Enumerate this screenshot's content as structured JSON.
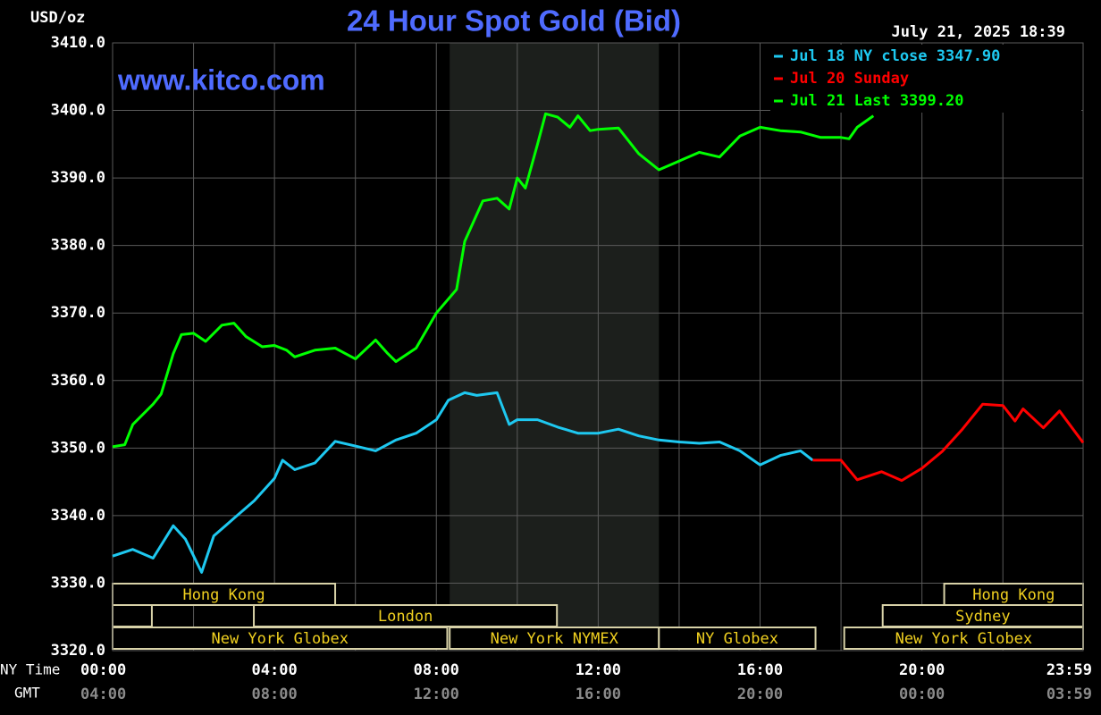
{
  "chart_data": {
    "type": "line",
    "title": "24 Hour Spot Gold (Bid)",
    "y_unit": "USD/oz",
    "watermark": "www.kitco.com",
    "timestamp": "July 21, 2025 18:39",
    "x_axis_label": "NY Time",
    "x2_axis_label": "GMT",
    "xlim": [
      0,
      23.983
    ],
    "ylim": [
      3320,
      3410
    ],
    "yticks": [
      {
        "value": 3410,
        "label": "3410.0"
      },
      {
        "value": 3400,
        "label": "3400.0"
      },
      {
        "value": 3390,
        "label": "3390.0"
      },
      {
        "value": 3380,
        "label": "3380.0"
      },
      {
        "value": 3370,
        "label": "3370.0"
      },
      {
        "value": 3360,
        "label": "3360.0"
      },
      {
        "value": 3350,
        "label": "3350.0"
      },
      {
        "value": 3340,
        "label": "3340.0"
      },
      {
        "value": 3330,
        "label": "3330.0"
      },
      {
        "value": 3320,
        "label": "3320.0"
      }
    ],
    "xticks": [
      {
        "value": 0,
        "label": "00:00"
      },
      {
        "value": 4,
        "label": "04:00"
      },
      {
        "value": 8,
        "label": "08:00"
      },
      {
        "value": 12,
        "label": "12:00"
      },
      {
        "value": 16,
        "label": "16:00"
      },
      {
        "value": 20,
        "label": "20:00"
      },
      {
        "value": 23.983,
        "label": "23:59"
      }
    ],
    "x2ticks": [
      {
        "value": 0,
        "label": "04:00"
      },
      {
        "value": 4,
        "label": "08:00"
      },
      {
        "value": 8,
        "label": "12:00"
      },
      {
        "value": 12,
        "label": "16:00"
      },
      {
        "value": 16,
        "label": "20:00"
      },
      {
        "value": 20,
        "label": "00:00"
      },
      {
        "value": 23.983,
        "label": "03:59"
      }
    ],
    "xgrid": [
      2,
      6,
      10,
      14,
      18,
      22
    ],
    "grid": true,
    "highlight": {
      "start": 8.33,
      "end": 13.5
    },
    "sessions": [
      {
        "row": 0,
        "start": 0,
        "end": 5.5,
        "label": "Hong Kong"
      },
      {
        "row": 0,
        "start": 20.55,
        "end": 23.983,
        "label": "Hong Kong"
      },
      {
        "row": 1,
        "start": 0,
        "end": 0.97
      },
      {
        "row": 1,
        "start": 3.49,
        "end": 10.98,
        "label": "London"
      },
      {
        "row": 1,
        "start": 19.03,
        "end": 23.983,
        "label": "Sydney"
      },
      {
        "row": 2,
        "start": 0,
        "end": 8.27,
        "label": "New York Globex"
      },
      {
        "row": 2,
        "start": 8.33,
        "end": 13.5,
        "label": "New York NYMEX"
      },
      {
        "row": 2,
        "start": 13.5,
        "end": 17.37,
        "label": "NY Globex"
      },
      {
        "row": 2,
        "start": 18.08,
        "end": 23.983,
        "label": "New York Globex"
      }
    ],
    "series": [
      {
        "name": "Jul 18 NY close 3347.90",
        "color": "#1ec8f0",
        "x": [
          0,
          0.5,
          1.0,
          1.5,
          1.8,
          2.2,
          2.5,
          3.0,
          3.5,
          4.0,
          4.2,
          4.5,
          5.0,
          5.5,
          6.0,
          6.5,
          7.0,
          7.5,
          8.0,
          8.3,
          8.7,
          9.0,
          9.5,
          9.8,
          10.0,
          10.5,
          11.0,
          11.5,
          12.0,
          12.5,
          13.0,
          13.5,
          14.0,
          14.5,
          15.0,
          15.5,
          16.0,
          16.5,
          17.0,
          17.3
        ],
        "values": [
          3334.0,
          3335.0,
          3333.7,
          3338.5,
          3336.5,
          3331.6,
          3337.0,
          3339.6,
          3342.2,
          3345.5,
          3348.2,
          3346.8,
          3347.8,
          3351.0,
          3350.3,
          3349.6,
          3351.2,
          3352.2,
          3354.2,
          3357.1,
          3358.2,
          3357.8,
          3358.2,
          3353.5,
          3354.2,
          3354.2,
          3353.1,
          3352.2,
          3352.2,
          3352.8,
          3351.8,
          3351.2,
          3350.9,
          3350.7,
          3350.9,
          3349.6,
          3347.5,
          3348.9,
          3349.6,
          3348.2
        ]
      },
      {
        "name": "Jul 20 Sunday",
        "color": "#ff0000",
        "x": [
          17.3,
          18.0,
          18.4,
          19.0,
          19.5,
          20.0,
          20.5,
          21.0,
          21.5,
          22.0,
          22.3,
          22.5,
          23.0,
          23.4,
          23.983
        ],
        "values": [
          3348.2,
          3348.2,
          3345.3,
          3346.5,
          3345.2,
          3347.0,
          3349.5,
          3352.8,
          3356.5,
          3356.3,
          3354.0,
          3355.8,
          3353.0,
          3355.5,
          3350.8
        ]
      },
      {
        "name": "Jul 21 Last 3399.20",
        "color": "#00ff00",
        "x": [
          0,
          0.3,
          0.5,
          1.0,
          1.2,
          1.5,
          1.7,
          2.0,
          2.3,
          2.7,
          3.0,
          3.3,
          3.7,
          4.0,
          4.3,
          4.5,
          5.0,
          5.5,
          6.0,
          6.5,
          6.8,
          7.0,
          7.5,
          8.0,
          8.5,
          8.7,
          9.15,
          9.5,
          9.8,
          10.0,
          10.2,
          10.5,
          10.7,
          11.0,
          11.3,
          11.5,
          11.8,
          12.0,
          12.5,
          13.0,
          13.5,
          14.0,
          14.5,
          15.0,
          15.5,
          16.0,
          16.5,
          17.0,
          17.5,
          18.0,
          18.2,
          18.4,
          18.8
        ],
        "values": [
          3350.2,
          3350.5,
          3353.5,
          3356.5,
          3358.0,
          3364.0,
          3366.8,
          3367.0,
          3365.8,
          3368.2,
          3368.5,
          3366.5,
          3365.0,
          3365.2,
          3364.5,
          3363.5,
          3364.5,
          3364.8,
          3363.2,
          3366.0,
          3364.0,
          3362.8,
          3364.8,
          3370.0,
          3373.5,
          3380.6,
          3386.6,
          3387.0,
          3385.4,
          3390.0,
          3388.5,
          3395.0,
          3399.5,
          3399.0,
          3397.5,
          3399.2,
          3397.0,
          3397.2,
          3397.4,
          3393.6,
          3391.2,
          3392.5,
          3393.8,
          3393.1,
          3396.2,
          3397.5,
          3397.0,
          3396.8,
          3396.0,
          3396.0,
          3395.8,
          3397.5,
          3399.2
        ]
      }
    ]
  }
}
